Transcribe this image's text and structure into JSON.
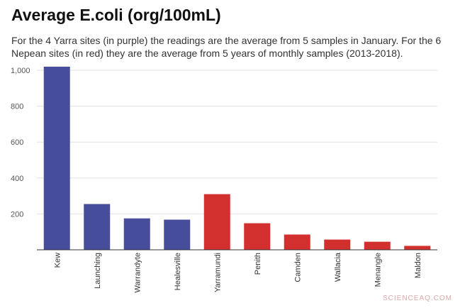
{
  "title": "Average E.coli (org/100mL)",
  "subtitle": "For the 4 Yarra sites (in purple) the readings are the average from 5 samples in January. For the 6 Nepean sites (in red) they are the average from 5 years of monthly samples (2013-2018).",
  "watermark": "SCIENCEAQ.COM",
  "colors": {
    "yarra": "#464e9b",
    "nepean": "#d1302e",
    "grid": "#e2e2e2",
    "axis": "#333333"
  },
  "chart_data": {
    "type": "bar",
    "categories": [
      "Kew",
      "Launching",
      "Warrandyte",
      "Healesville",
      "Yarramundi",
      "Penith",
      "Camden",
      "Wallacia",
      "Menangle",
      "Maldon"
    ],
    "values": [
      1020,
      255,
      175,
      168,
      310,
      148,
      85,
      57,
      45,
      22
    ],
    "groups": [
      "yarra",
      "yarra",
      "yarra",
      "yarra",
      "nepean",
      "nepean",
      "nepean",
      "nepean",
      "nepean",
      "nepean"
    ],
    "ylim": [
      0,
      1000
    ],
    "yticks": [
      200,
      400,
      600,
      800,
      1000
    ],
    "ytick_labels": [
      "200",
      "400",
      "600",
      "800",
      "1,000"
    ],
    "grid": true,
    "legend": "none"
  }
}
